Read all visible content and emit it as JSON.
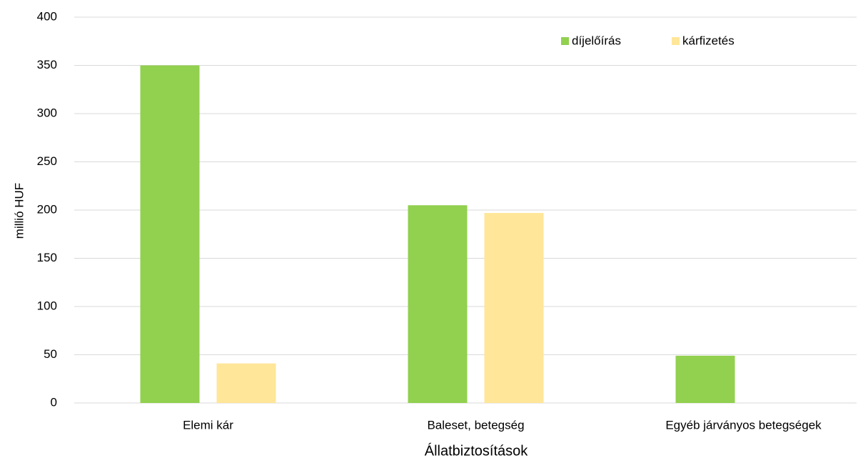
{
  "chart_data": {
    "type": "bar",
    "categories": [
      "Elemi kár",
      "Baleset, betegség",
      "Egyéb járványos betegségek"
    ],
    "series": [
      {
        "name": "díjelőírás",
        "color": "#92d050",
        "values": [
          350,
          205,
          49
        ]
      },
      {
        "name": "kárfizetés",
        "color": "#ffe699",
        "values": [
          41,
          197,
          0
        ]
      }
    ],
    "x_label": "Állatbiztosítások",
    "y_label": "millió HUF",
    "ylim": [
      0,
      400
    ],
    "yticks": [
      0,
      50,
      100,
      150,
      200,
      250,
      300,
      350,
      400
    ],
    "grid": true
  }
}
